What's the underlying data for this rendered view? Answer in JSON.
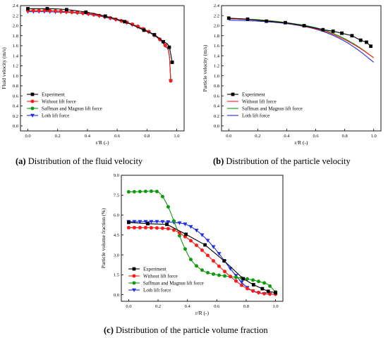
{
  "colors": {
    "experiment": "#000000",
    "without": "#ff1a1a",
    "saffman": "#119911",
    "loth": "#1f2fe0"
  },
  "chart_data": [
    {
      "id": "a",
      "type": "line",
      "xlabel": "r/R (-)",
      "ylabel": "Fluid velocity (m/s)",
      "xlim": [
        -0.05,
        1.05
      ],
      "ylim": [
        -0.1,
        2.4
      ],
      "xticks": [
        "0.0",
        "0.2",
        "0.4",
        "0.6",
        "0.8",
        "1.0"
      ],
      "yticks": [
        "0.0",
        "0.2",
        "0.4",
        "0.6",
        "0.8",
        "1.0",
        "1.2",
        "1.4",
        "1.6",
        "1.8",
        "2.0",
        "2.2",
        "2.4"
      ],
      "legend_position": "bottom-left",
      "series": [
        {
          "name": "Experiment",
          "color_key": "experiment",
          "marker": "square",
          "line": "smooth",
          "markers_at": "points",
          "x": [
            0.0,
            0.13,
            0.26,
            0.39,
            0.52,
            0.65,
            0.78,
            0.85,
            0.91,
            0.95,
            0.97
          ],
          "y": [
            2.34,
            2.34,
            2.32,
            2.27,
            2.19,
            2.08,
            1.91,
            1.82,
            1.68,
            1.57,
            1.27
          ]
        },
        {
          "name": "Without lift force",
          "color_key": "without",
          "marker": "circle",
          "line": "smooth",
          "markers_at": "dense",
          "x": [
            0.0,
            0.1,
            0.2,
            0.3,
            0.4,
            0.5,
            0.6,
            0.7,
            0.8,
            0.85,
            0.9,
            0.93,
            0.95,
            0.96
          ],
          "y": [
            2.3,
            2.3,
            2.29,
            2.27,
            2.24,
            2.19,
            2.12,
            2.03,
            1.9,
            1.81,
            1.69,
            1.58,
            1.44,
            0.9
          ]
        },
        {
          "name": "Saffman and Magnus lift force",
          "color_key": "saffman",
          "marker": "circle",
          "line": "smooth",
          "markers_at": "dense",
          "x": [
            0.0,
            0.1,
            0.2,
            0.3,
            0.4,
            0.5,
            0.6,
            0.7,
            0.8,
            0.85,
            0.9,
            0.93,
            0.95,
            0.96
          ],
          "y": [
            2.3,
            2.3,
            2.29,
            2.27,
            2.24,
            2.19,
            2.12,
            2.03,
            1.9,
            1.81,
            1.69,
            1.58,
            1.44,
            0.9
          ]
        },
        {
          "name": "Loth lift force",
          "color_key": "loth",
          "marker": "triangle-down",
          "line": "smooth",
          "markers_at": "dense",
          "x": [
            0.0,
            0.1,
            0.2,
            0.3,
            0.4,
            0.5,
            0.6,
            0.7,
            0.8,
            0.85,
            0.9,
            0.93,
            0.95,
            0.96
          ],
          "y": [
            2.28,
            2.28,
            2.27,
            2.26,
            2.23,
            2.18,
            2.11,
            2.02,
            1.89,
            1.8,
            1.68,
            1.57,
            1.43,
            0.9
          ]
        }
      ]
    },
    {
      "id": "b",
      "type": "line",
      "xlabel": "r/R (-)",
      "ylabel": "Particle velocity (m/s)",
      "xlim": [
        -0.05,
        1.05
      ],
      "ylim": [
        -0.1,
        2.4
      ],
      "xticks": [
        "0.0",
        "0.2",
        "0.4",
        "0.6",
        "0.8",
        "1.0"
      ],
      "yticks": [
        "0.0",
        "0.2",
        "0.4",
        "0.6",
        "0.8",
        "1.0",
        "1.2",
        "1.4",
        "1.6",
        "1.8",
        "2.0",
        "2.2",
        "2.4"
      ],
      "legend_position": "bottom-left",
      "series": [
        {
          "name": "Experiment",
          "color_key": "experiment",
          "marker": "square",
          "line": "straight",
          "markers_at": "points",
          "x": [
            0.0,
            0.13,
            0.26,
            0.39,
            0.52,
            0.65,
            0.72,
            0.78,
            0.85,
            0.91,
            0.95,
            0.98
          ],
          "y": [
            2.15,
            2.13,
            2.09,
            2.06,
            2.0,
            1.92,
            1.89,
            1.85,
            1.8,
            1.71,
            1.67,
            1.59
          ]
        },
        {
          "name": "Without lift force",
          "color_key": "without",
          "marker": "none",
          "line": "smooth",
          "markers_at": "none",
          "x": [
            0.0,
            0.2,
            0.4,
            0.6,
            0.7,
            0.8,
            0.9,
            1.0
          ],
          "y": [
            2.14,
            2.11,
            2.05,
            1.94,
            1.85,
            1.72,
            1.56,
            1.36
          ]
        },
        {
          "name": "Saffman and Magnus lift force",
          "color_key": "saffman",
          "marker": "none",
          "line": "smooth",
          "markers_at": "none",
          "x": [
            0.0,
            0.2,
            0.4,
            0.6,
            0.7,
            0.8,
            0.9,
            1.0
          ],
          "y": [
            2.14,
            2.12,
            2.06,
            1.96,
            1.87,
            1.74,
            1.57,
            1.36
          ]
        },
        {
          "name": "Loth lift force",
          "color_key": "loth",
          "marker": "none",
          "line": "smooth",
          "markers_at": "none",
          "x": [
            0.0,
            0.2,
            0.4,
            0.6,
            0.7,
            0.8,
            0.9,
            1.0
          ],
          "y": [
            2.11,
            2.09,
            2.04,
            1.93,
            1.83,
            1.69,
            1.5,
            1.27
          ]
        }
      ]
    },
    {
      "id": "c",
      "type": "line",
      "xlabel": "r/R (-)",
      "ylabel": "Particle volume fraction (%)",
      "xlim": [
        -0.05,
        1.05
      ],
      "ylim": [
        -0.5,
        9.0
      ],
      "xticks": [
        "0.0",
        "0.2",
        "0.4",
        "0.6",
        "0.8",
        "1.0"
      ],
      "yticks": [
        "0.0",
        "1.5",
        "3.0",
        "4.5",
        "6.0",
        "7.5",
        "9.0"
      ],
      "legend_position": "bottom-left",
      "series": [
        {
          "name": "Experiment",
          "color_key": "experiment",
          "marker": "square",
          "line": "straight",
          "markers_at": "points",
          "x": [
            0.0,
            0.13,
            0.26,
            0.39,
            0.52,
            0.65,
            0.78,
            0.85,
            0.91,
            0.95,
            1.0
          ],
          "y": [
            5.45,
            5.35,
            5.3,
            4.55,
            3.75,
            2.55,
            1.2,
            0.75,
            0.45,
            0.25,
            0.15
          ]
        },
        {
          "name": "Without lift force",
          "color_key": "without",
          "marker": "circle",
          "line": "smooth",
          "markers_at": "dense",
          "x": [
            0.0,
            0.1,
            0.2,
            0.3,
            0.4,
            0.5,
            0.6,
            0.7,
            0.8,
            0.9,
            0.95,
            1.0
          ],
          "y": [
            5.05,
            5.05,
            5.02,
            4.9,
            4.25,
            3.35,
            2.3,
            1.3,
            0.5,
            0.12,
            0.05,
            0.03
          ]
        },
        {
          "name": "Saffman and Magnus lift force",
          "color_key": "saffman",
          "marker": "circle",
          "line": "smooth",
          "markers_at": "dense",
          "x": [
            0.0,
            0.1,
            0.18,
            0.22,
            0.27,
            0.32,
            0.37,
            0.42,
            0.5,
            0.6,
            0.7,
            0.8,
            0.9,
            0.95,
            1.0
          ],
          "y": [
            7.75,
            7.78,
            7.8,
            7.55,
            6.6,
            5.2,
            3.8,
            2.7,
            1.85,
            1.5,
            1.35,
            1.2,
            0.95,
            0.75,
            0.2
          ]
        },
        {
          "name": "Loth lift force",
          "color_key": "loth",
          "marker": "triangle-down",
          "line": "smooth",
          "markers_at": "dense",
          "x": [
            0.0,
            0.1,
            0.2,
            0.3,
            0.4,
            0.5,
            0.6,
            0.7,
            0.8,
            0.85,
            0.9,
            0.95,
            1.0
          ],
          "y": [
            5.5,
            5.5,
            5.5,
            5.45,
            5.25,
            4.5,
            3.3,
            1.85,
            0.6,
            0.25,
            0.1,
            0.05,
            0.03
          ]
        }
      ]
    }
  ],
  "captions": [
    {
      "label": "(a)",
      "text": " Distribution of the fluid velocity"
    },
    {
      "label": "(b)",
      "text": " Distribution of the particle velocity"
    },
    {
      "label": "(c)",
      "text": " Distribution of the particle volume fraction"
    }
  ]
}
